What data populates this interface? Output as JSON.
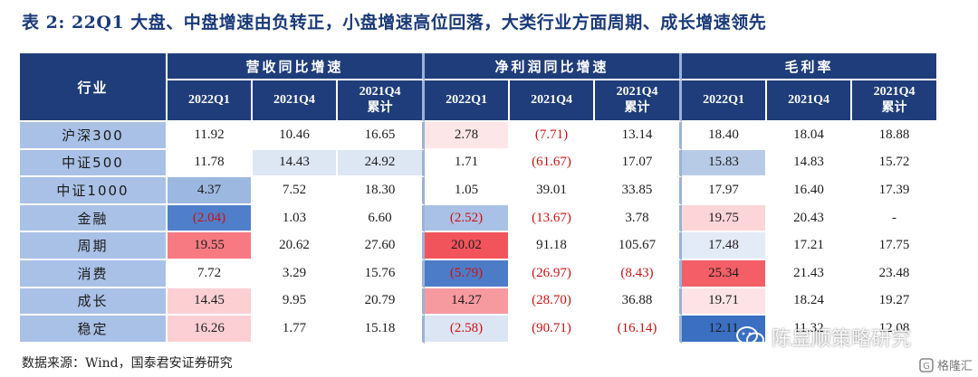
{
  "title": "表 2:  22Q1 大盘、中盘增速由负转正，小盘增速高位回落，大类行业方面周期、成长增速领先",
  "table": {
    "row_header": "行业",
    "groups": [
      "营收同比增速",
      "净利润同比增速",
      "毛利率"
    ],
    "subheaders": [
      [
        "2022Q1",
        "2021Q4",
        "2021Q4\n累计"
      ],
      [
        "2022Q1",
        "2021Q4",
        "2021Q4\n累计"
      ],
      [
        "2022Q1",
        "2021Q4",
        "2021Q4\n累计"
      ]
    ],
    "rows": [
      {
        "label": "沪深300",
        "values": [
          "11.92",
          "10.46",
          "16.65",
          "2.78",
          "(7.71)",
          "13.14",
          "18.40",
          "18.04",
          "18.88"
        ]
      },
      {
        "label": "中证500",
        "values": [
          "11.78",
          "14.43",
          "24.92",
          "1.71",
          "(61.67)",
          "17.07",
          "15.83",
          "14.83",
          "15.72"
        ]
      },
      {
        "label": "中证1000",
        "values": [
          "4.37",
          "7.52",
          "18.30",
          "1.05",
          "39.01",
          "33.85",
          "17.97",
          "16.40",
          "17.39"
        ]
      },
      {
        "label": "金融",
        "values": [
          "(2.04)",
          "1.03",
          "6.60",
          "(2.52)",
          "(13.67)",
          "3.78",
          "19.75",
          "20.43",
          "-"
        ]
      },
      {
        "label": "周期",
        "values": [
          "19.55",
          "20.62",
          "27.60",
          "20.02",
          "91.18",
          "105.67",
          "17.48",
          "17.21",
          "17.75"
        ]
      },
      {
        "label": "消费",
        "values": [
          "7.72",
          "3.29",
          "15.76",
          "(5.79)",
          "(26.97)",
          "(8.43)",
          "25.34",
          "21.43",
          "23.48"
        ]
      },
      {
        "label": "成长",
        "values": [
          "14.45",
          "9.95",
          "20.79",
          "14.27",
          "(28.70)",
          "36.88",
          "19.71",
          "18.24",
          "19.27"
        ]
      },
      {
        "label": "稳定",
        "values": [
          "16.26",
          "1.77",
          "15.18",
          "(2.58)",
          "(90.71)",
          "(16.14)",
          "12.11",
          "11.32",
          "12.08"
        ]
      }
    ],
    "cell_colors": [
      [
        "#ffffff",
        "#ffffff",
        "#ffffff",
        "#fde6e8",
        "#ffffff",
        "#ffffff",
        "#ffffff",
        "#ffffff",
        "#ffffff"
      ],
      [
        "#ffffff",
        "#dde6f3",
        "#dde6f3",
        "#ffffff",
        "#ffffff",
        "#ffffff",
        "#b8cbe6",
        "#ffffff",
        "#ffffff"
      ],
      [
        "#9cb8e0",
        "#ffffff",
        "#ffffff",
        "#ffffff",
        "#ffffff",
        "#ffffff",
        "#ffffff",
        "#ffffff",
        "#ffffff"
      ],
      [
        "#4f7fca",
        "#ffffff",
        "#ffffff",
        "#a9c1e6",
        "#ffffff",
        "#ffffff",
        "#fcd5d9",
        "#ffffff",
        "#ffffff"
      ],
      [
        "#f77a82",
        "#ffffff",
        "#ffffff",
        "#f2545c",
        "#ffffff",
        "#ffffff",
        "#e3ebf6",
        "#ffffff",
        "#ffffff"
      ],
      [
        "#ffffff",
        "#ffffff",
        "#ffffff",
        "#4c7cc7",
        "#ffffff",
        "#ffffff",
        "#f45e66",
        "#ffffff",
        "#ffffff"
      ],
      [
        "#fccfd3",
        "#ffffff",
        "#ffffff",
        "#f79aa0",
        "#ffffff",
        "#ffffff",
        "#fde3e6",
        "#ffffff",
        "#ffffff"
      ],
      [
        "#fbcfd3",
        "#ffffff",
        "#ffffff",
        "#dbe5f3",
        "#ffffff",
        "#ffffff",
        "#3a6fc1",
        "#ffffff",
        "#ffffff"
      ]
    ],
    "colors": {
      "header_bg": "#1f3d7a",
      "label_bg": "#a9c1e6",
      "negative_text": "#d01010"
    }
  },
  "source": "数据来源：Wind，国泰君安证券研究",
  "watermark": {
    "text": "陈显顺策略研究",
    "icon": "wechat-icon"
  },
  "corner_logo": {
    "text": "格隆汇",
    "icon": "glh-logo-icon"
  }
}
